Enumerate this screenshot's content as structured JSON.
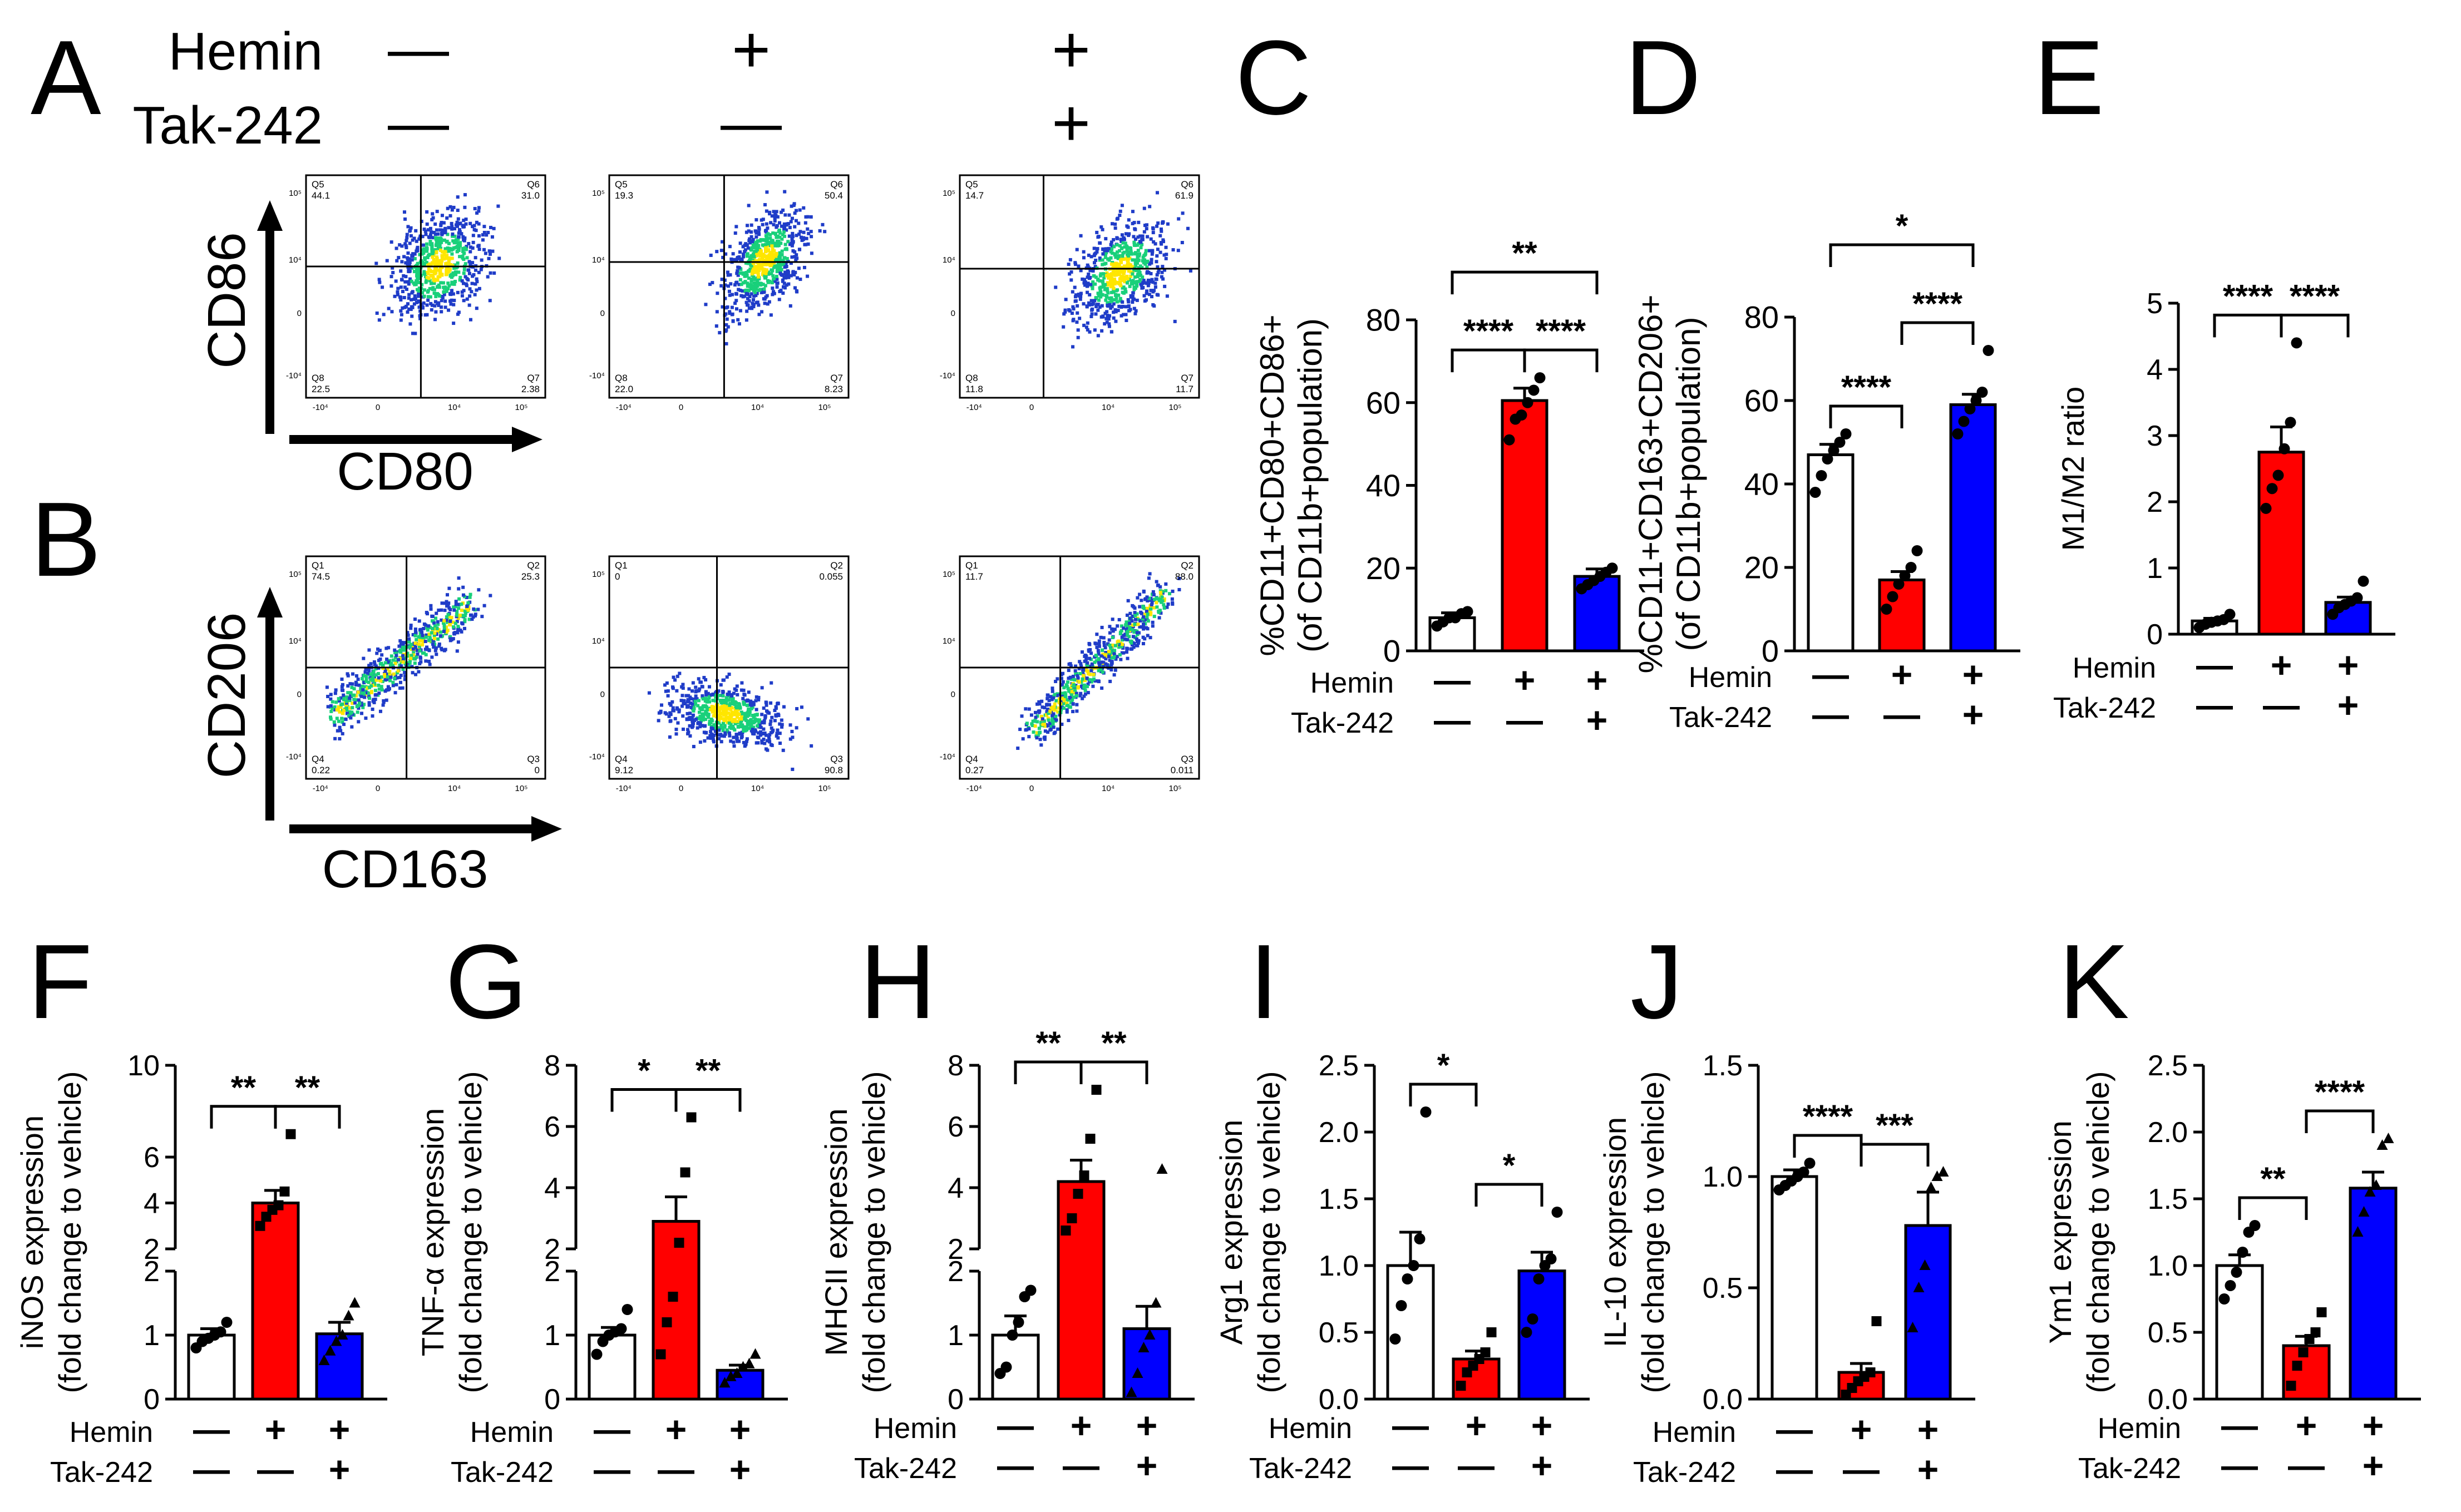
{
  "conditions": {
    "hemin_label": "Hemin",
    "tak_label": "Tak-242",
    "hemin_signs": [
      "—",
      "+",
      "+"
    ],
    "tak_signs": [
      "—",
      "—",
      "+"
    ]
  },
  "colors": {
    "vehicle": "#ffffff",
    "hemin": "#ff0000",
    "hemin_tak": "#0000ff",
    "density_low": "#1f3cc8",
    "density_mid": "#19d07a",
    "density_high": "#ffe600"
  },
  "flow": {
    "panel_A": {
      "letter": "A",
      "ylabel": "CD86",
      "xlabel": "CD80",
      "plots": [
        {
          "q_ul": "Q5",
          "v_ul": "44.1",
          "q_ur": "Q6",
          "v_ur": "31.0",
          "q_ll": "Q8",
          "v_ll": "22.5",
          "q_lr": "Q7",
          "v_lr": "2.38"
        },
        {
          "q_ul": "Q5",
          "v_ul": "19.3",
          "q_ur": "Q6",
          "v_ur": "50.4",
          "q_ll": "Q8",
          "v_ll": "22.0",
          "q_lr": "Q7",
          "v_lr": "8.23"
        },
        {
          "q_ul": "Q5",
          "v_ul": "14.7",
          "q_ur": "Q6",
          "v_ur": "61.9",
          "q_ll": "Q8",
          "v_ll": "11.8",
          "q_lr": "Q7",
          "v_lr": "11.7"
        }
      ]
    },
    "panel_B": {
      "letter": "B",
      "ylabel": "CD206",
      "xlabel": "CD163",
      "plots": [
        {
          "q_ul": "Q1",
          "v_ul": "74.5",
          "q_ur": "Q2",
          "v_ur": "25.3",
          "q_ll": "Q4",
          "v_ll": "0.22",
          "q_lr": "Q3",
          "v_lr": "0"
        },
        {
          "q_ul": "Q1",
          "v_ul": "0",
          "q_ur": "Q2",
          "v_ur": "0.055",
          "q_ll": "Q4",
          "v_ll": "9.12",
          "q_lr": "Q3",
          "v_lr": "90.8"
        },
        {
          "q_ul": "Q1",
          "v_ul": "11.7",
          "q_ur": "Q2",
          "v_ur": "88.0",
          "q_ll": "Q4",
          "v_ll": "0.27",
          "q_lr": "Q3",
          "v_lr": "0.011"
        }
      ]
    },
    "axis_ticks": {
      "x": [
        "-10⁴",
        "0",
        "10⁴",
        "10⁵"
      ],
      "y": [
        "10⁵",
        "10⁴",
        "0",
        "-10⁴"
      ]
    }
  },
  "chart_data": [
    {
      "id": "C",
      "type": "bar",
      "letter": "C",
      "categories": [
        "Vehicle",
        "Hemin",
        "Hemin + Tak-242"
      ],
      "values": [
        8,
        60.5,
        18
      ],
      "errors": [
        1.2,
        3.0,
        1.8
      ],
      "points": [
        [
          6,
          7,
          8,
          8,
          9,
          9.5
        ],
        [
          51,
          56,
          57,
          60,
          63,
          66
        ],
        [
          15,
          16,
          17,
          18,
          19,
          20
        ]
      ],
      "ylabel_lines": [
        "%CD11+CD80+CD86+",
        "(of CD11b+population)"
      ],
      "ylim": [
        0,
        80
      ],
      "yticks": [
        0,
        20,
        40,
        60,
        80
      ],
      "yticklabels": [
        "0",
        "20",
        "40",
        "60",
        "80"
      ],
      "significance": [
        {
          "from": 0,
          "to": 1,
          "label": "****"
        },
        {
          "from": 1,
          "to": 2,
          "label": "****"
        },
        {
          "from": 0,
          "to": 2,
          "label": "**"
        }
      ]
    },
    {
      "id": "D",
      "type": "bar",
      "letter": "D",
      "categories": [
        "Vehicle",
        "Hemin",
        "Hemin + Tak-242"
      ],
      "values": [
        47,
        17,
        59
      ],
      "errors": [
        2.5,
        2.0,
        2.5
      ],
      "points": [
        [
          38,
          42,
          46,
          48,
          50,
          52
        ],
        [
          10,
          13,
          16,
          18,
          20,
          24
        ],
        [
          52,
          55,
          58,
          60,
          62,
          72
        ]
      ],
      "ylabel_lines": [
        "%CD11+CD163+CD206+",
        "(of CD11b+population)"
      ],
      "ylim": [
        0,
        80
      ],
      "yticks": [
        0,
        20,
        40,
        60,
        80
      ],
      "yticklabels": [
        "0",
        "20",
        "40",
        "60",
        "80"
      ],
      "significance": [
        {
          "from": 0,
          "to": 1,
          "label": "****"
        },
        {
          "from": 1,
          "to": 2,
          "label": "****"
        },
        {
          "from": 0,
          "to": 2,
          "label": "*"
        }
      ]
    },
    {
      "id": "E",
      "type": "bar",
      "letter": "E",
      "categories": [
        "Vehicle",
        "Hemin",
        "Hemin + Tak-242"
      ],
      "values": [
        0.2,
        2.75,
        0.48
      ],
      "errors": [
        0.04,
        0.38,
        0.08
      ],
      "points": [
        [
          0.1,
          0.15,
          0.18,
          0.2,
          0.22,
          0.3
        ],
        [
          1.9,
          2.2,
          2.4,
          2.8,
          3.2,
          4.4
        ],
        [
          0.3,
          0.4,
          0.45,
          0.5,
          0.55,
          0.8
        ]
      ],
      "ylabel_lines": [
        "M1/M2 ratio"
      ],
      "ylim": [
        0,
        5
      ],
      "yticks": [
        0,
        1,
        2,
        3,
        4,
        5
      ],
      "yticklabels": [
        "0",
        "1",
        "2",
        "3",
        "4",
        "5"
      ],
      "significance": [
        {
          "from": 0,
          "to": 1,
          "label": "****"
        },
        {
          "from": 1,
          "to": 2,
          "label": "****"
        }
      ]
    },
    {
      "id": "F",
      "type": "bar",
      "letter": "F",
      "broken": true,
      "marker": "circle",
      "categories": [
        "Vehicle",
        "Hemin",
        "Hemin + Tak-242"
      ],
      "values": [
        1.0,
        4.0,
        1.02
      ],
      "errors": [
        0.1,
        0.55,
        0.18
      ],
      "points": [
        [
          0.8,
          0.9,
          0.95,
          1.0,
          1.05,
          1.2
        ],
        [
          3.0,
          3.4,
          3.7,
          3.9,
          4.5,
          7.0
        ],
        [
          0.6,
          0.75,
          0.9,
          1.0,
          1.3,
          1.5
        ]
      ],
      "ylabel_lines": [
        "iNOS expression",
        "(fold change to vehicle)"
      ],
      "lower": {
        "range": [
          0,
          2
        ],
        "ticks": [
          0,
          1,
          2
        ],
        "labels": [
          "0",
          "1",
          "2"
        ]
      },
      "upper": {
        "range": [
          2,
          10
        ],
        "ticks": [
          2,
          4,
          6,
          10
        ],
        "labels": [
          "2",
          "4",
          "6",
          "10"
        ]
      },
      "significance": [
        {
          "from": 0,
          "to": 1,
          "label": "**"
        },
        {
          "from": 1,
          "to": 2,
          "label": "**"
        }
      ]
    },
    {
      "id": "G",
      "type": "bar",
      "letter": "G",
      "broken": true,
      "marker": "circle",
      "categories": [
        "Vehicle",
        "Hemin",
        "Hemin + Tak-242"
      ],
      "values": [
        1.0,
        2.9,
        0.45
      ],
      "errors": [
        0.12,
        0.8,
        0.08
      ],
      "points": [
        [
          0.7,
          0.9,
          1.0,
          1.05,
          1.1,
          1.4
        ],
        [
          0.7,
          1.2,
          1.6,
          2.2,
          4.5,
          6.3
        ],
        [
          0.25,
          0.35,
          0.4,
          0.5,
          0.55,
          0.7
        ]
      ],
      "ylabel_lines": [
        "TNF-α expression",
        "(fold change to vehicle)"
      ],
      "lower": {
        "range": [
          0,
          2
        ],
        "ticks": [
          0,
          1,
          2
        ],
        "labels": [
          "0",
          "1",
          "2"
        ]
      },
      "upper": {
        "range": [
          2,
          8
        ],
        "ticks": [
          2,
          4,
          6,
          8
        ],
        "labels": [
          "2",
          "4",
          "6",
          "8"
        ]
      },
      "significance": [
        {
          "from": 0,
          "to": 1,
          "label": "*"
        },
        {
          "from": 1,
          "to": 2,
          "label": "**"
        }
      ]
    },
    {
      "id": "H",
      "type": "bar",
      "letter": "H",
      "broken": true,
      "marker": "circle",
      "categories": [
        "Vehicle",
        "Hemin",
        "Hemin + Tak-242"
      ],
      "values": [
        1.0,
        4.2,
        1.1
      ],
      "errors": [
        0.3,
        0.7,
        0.35
      ],
      "points": [
        [
          0.4,
          0.5,
          1.0,
          1.2,
          1.6,
          1.7
        ],
        [
          2.6,
          3.0,
          3.8,
          4.4,
          5.6,
          7.2
        ],
        [
          0.1,
          0.4,
          0.8,
          1.0,
          1.5,
          4.6
        ]
      ],
      "ylabel_lines": [
        "MHCII expression",
        "(fold change to vehicle)"
      ],
      "lower": {
        "range": [
          0,
          2
        ],
        "ticks": [
          0,
          1,
          2
        ],
        "labels": [
          "0",
          "1",
          "2"
        ]
      },
      "upper": {
        "range": [
          2,
          8
        ],
        "ticks": [
          2,
          4,
          6,
          8
        ],
        "labels": [
          "2",
          "4",
          "6",
          "8"
        ]
      },
      "significance": [
        {
          "from": 0,
          "to": 1,
          "label": "**"
        },
        {
          "from": 1,
          "to": 2,
          "label": "**"
        }
      ]
    },
    {
      "id": "I",
      "type": "bar",
      "letter": "I",
      "marker": "circle",
      "categories": [
        "Vehicle",
        "Hemin",
        "Hemin + Tak-242"
      ],
      "values": [
        1.0,
        0.3,
        0.96
      ],
      "errors": [
        0.25,
        0.06,
        0.14
      ],
      "points": [
        [
          0.45,
          0.7,
          0.9,
          1.0,
          1.2,
          2.15
        ],
        [
          0.1,
          0.2,
          0.25,
          0.3,
          0.35,
          0.5
        ],
        [
          0.5,
          0.6,
          0.9,
          1.0,
          1.05,
          1.4
        ]
      ],
      "ylabel_lines": [
        "Arg1 expression",
        "(fold change to vehicle)"
      ],
      "ylim": [
        0,
        2.5
      ],
      "yticks": [
        0,
        0.5,
        1,
        1.5,
        2,
        2.5
      ],
      "yticklabels": [
        "0.0",
        "0.5",
        "1.0",
        "1.5",
        "2.0",
        "2.5"
      ],
      "significance": [
        {
          "from": 0,
          "to": 1,
          "label": "*"
        },
        {
          "from": 1,
          "to": 2,
          "label": "*"
        }
      ]
    },
    {
      "id": "J",
      "type": "bar",
      "letter": "J",
      "marker": "circle",
      "categories": [
        "Vehicle",
        "Hemin",
        "Hemin + Tak-242"
      ],
      "values": [
        1.0,
        0.12,
        0.78
      ],
      "errors": [
        0.03,
        0.04,
        0.15
      ],
      "points": [
        [
          0.94,
          0.96,
          0.98,
          1.0,
          1.02,
          1.06
        ],
        [
          0.02,
          0.05,
          0.08,
          0.1,
          0.12,
          0.35
        ],
        [
          0.32,
          0.5,
          0.6,
          0.95,
          1.0,
          1.02
        ]
      ],
      "ylabel_lines": [
        "IL-10 expression",
        "(fold change to vehicle)"
      ],
      "ylim": [
        0,
        1.5
      ],
      "yticks": [
        0,
        0.5,
        1,
        1.5
      ],
      "yticklabels": [
        "0.0",
        "0.5",
        "1.0",
        "1.5"
      ],
      "significance": [
        {
          "from": 0,
          "to": 1,
          "label": "****"
        },
        {
          "from": 1,
          "to": 2,
          "label": "***"
        }
      ]
    },
    {
      "id": "K",
      "type": "bar",
      "letter": "K",
      "marker": "circle",
      "categories": [
        "Vehicle",
        "Hemin",
        "Hemin + Tak-242"
      ],
      "values": [
        1.0,
        0.4,
        1.58
      ],
      "errors": [
        0.08,
        0.07,
        0.12
      ],
      "points": [
        [
          0.75,
          0.85,
          0.95,
          1.1,
          1.25,
          1.3
        ],
        [
          0.1,
          0.25,
          0.35,
          0.45,
          0.5,
          0.65
        ],
        [
          1.25,
          1.4,
          1.55,
          1.6,
          1.9,
          1.95
        ]
      ],
      "ylabel_lines": [
        "Ym1 expression",
        "(fold change to vehicle)"
      ],
      "ylim": [
        0,
        2.5
      ],
      "yticks": [
        0,
        0.5,
        1,
        1.5,
        2,
        2.5
      ],
      "yticklabels": [
        "0.0",
        "0.5",
        "1.0",
        "1.5",
        "2.0",
        "2.5"
      ],
      "significance": [
        {
          "from": 0,
          "to": 1,
          "label": "**"
        },
        {
          "from": 1,
          "to": 2,
          "label": "****"
        }
      ]
    }
  ]
}
